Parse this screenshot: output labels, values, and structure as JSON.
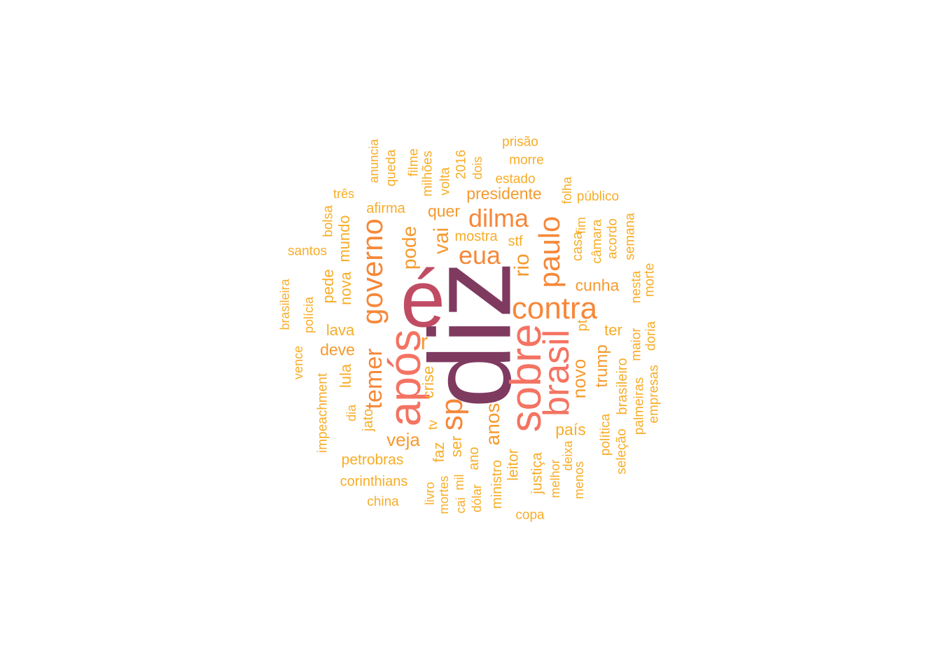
{
  "palette": {
    "t1": "#7f3a60",
    "t2": "#c04c63",
    "t3": "#f47362",
    "t4": "#f5883a",
    "t5": "#f59a2f",
    "t6": "#f7ad28"
  },
  "words": [
    {
      "text": "diz",
      "tier": "t1"
    },
    {
      "text": "é",
      "tier": "t2"
    },
    {
      "text": "após",
      "tier": "t3"
    },
    {
      "text": "sobre",
      "tier": "t3"
    },
    {
      "text": "brasil",
      "tier": "t3"
    },
    {
      "text": "contra",
      "tier": "t4"
    },
    {
      "text": "paulo",
      "tier": "t4"
    },
    {
      "text": "governo",
      "tier": "t4"
    },
    {
      "text": "sp",
      "tier": "t4"
    },
    {
      "text": "dilma",
      "tier": "t4"
    },
    {
      "text": "eua",
      "tier": "t4"
    },
    {
      "text": "temer",
      "tier": "t4"
    },
    {
      "text": "rio",
      "tier": "t5"
    },
    {
      "text": "vai",
      "tier": "t5"
    },
    {
      "text": "pode",
      "tier": "t5"
    },
    {
      "text": "r",
      "tier": "t5"
    },
    {
      "text": "anos",
      "tier": "t5"
    },
    {
      "text": "veja",
      "tier": "t5"
    },
    {
      "text": "novo",
      "tier": "t5"
    },
    {
      "text": "trump",
      "tier": "t5"
    },
    {
      "text": "cunha",
      "tier": "t5"
    },
    {
      "text": "presidente",
      "tier": "t5"
    },
    {
      "text": "quer",
      "tier": "t5"
    },
    {
      "text": "deve",
      "tier": "t5"
    },
    {
      "text": "crise",
      "tier": "t6"
    },
    {
      "text": "lula",
      "tier": "t6"
    },
    {
      "text": "lava",
      "tier": "t6"
    },
    {
      "text": "nova",
      "tier": "t6"
    },
    {
      "text": "mundo",
      "tier": "t6"
    },
    {
      "text": "pede",
      "tier": "t6"
    },
    {
      "text": "país",
      "tier": "t6"
    },
    {
      "text": "faz",
      "tier": "t6"
    },
    {
      "text": "ser",
      "tier": "t6"
    },
    {
      "text": "ter",
      "tier": "t6"
    },
    {
      "text": "justiça",
      "tier": "t6"
    },
    {
      "text": "leitor",
      "tier": "t6"
    },
    {
      "text": "ministro",
      "tier": "t6"
    },
    {
      "text": "ano",
      "tier": "t6"
    },
    {
      "text": "petrobras",
      "tier": "t6"
    },
    {
      "text": "corinthians",
      "tier": "t6"
    },
    {
      "text": "china",
      "tier": "t6"
    },
    {
      "text": "copa",
      "tier": "t6"
    },
    {
      "text": "afirma",
      "tier": "t6"
    },
    {
      "text": "mostra",
      "tier": "t6"
    },
    {
      "text": "stf",
      "tier": "t6"
    },
    {
      "text": "casa",
      "tier": "t6"
    },
    {
      "text": "fim",
      "tier": "t6"
    },
    {
      "text": "pt",
      "tier": "t6"
    },
    {
      "text": "brasileiro",
      "tier": "t6"
    },
    {
      "text": "política",
      "tier": "t6"
    },
    {
      "text": "seleção",
      "tier": "t6"
    },
    {
      "text": "palmeiras",
      "tier": "t6"
    },
    {
      "text": "maior",
      "tier": "t6"
    },
    {
      "text": "empresas",
      "tier": "t6"
    },
    {
      "text": "doria",
      "tier": "t6"
    },
    {
      "text": "morte",
      "tier": "t6"
    },
    {
      "text": "nesta",
      "tier": "t6"
    },
    {
      "text": "semana",
      "tier": "t6"
    },
    {
      "text": "acordo",
      "tier": "t6"
    },
    {
      "text": "câmara",
      "tier": "t6"
    },
    {
      "text": "folha",
      "tier": "t6"
    },
    {
      "text": "público",
      "tier": "t6"
    },
    {
      "text": "estado",
      "tier": "t6"
    },
    {
      "text": "morre",
      "tier": "t6"
    },
    {
      "text": "prisão",
      "tier": "t6"
    },
    {
      "text": "dois",
      "tier": "t6"
    },
    {
      "text": "2016",
      "tier": "t6"
    },
    {
      "text": "volta",
      "tier": "t6"
    },
    {
      "text": "milhões",
      "tier": "t6"
    },
    {
      "text": "filme",
      "tier": "t6"
    },
    {
      "text": "queda",
      "tier": "t6"
    },
    {
      "text": "anuncia",
      "tier": "t6"
    },
    {
      "text": "três",
      "tier": "t6"
    },
    {
      "text": "bolsa",
      "tier": "t6"
    },
    {
      "text": "santos",
      "tier": "t6"
    },
    {
      "text": "brasileira",
      "tier": "t6"
    },
    {
      "text": "polícia",
      "tier": "t6"
    },
    {
      "text": "vence",
      "tier": "t6"
    },
    {
      "text": "impeachment",
      "tier": "t6"
    },
    {
      "text": "dia",
      "tier": "t6"
    },
    {
      "text": "jato",
      "tier": "t6"
    },
    {
      "text": "tv",
      "tier": "t6"
    },
    {
      "text": "livro",
      "tier": "t6"
    },
    {
      "text": "mortes",
      "tier": "t6"
    },
    {
      "text": "cai",
      "tier": "t6"
    },
    {
      "text": "mil",
      "tier": "t6"
    },
    {
      "text": "dólar",
      "tier": "t6"
    },
    {
      "text": "melhor",
      "tier": "t6"
    },
    {
      "text": "deixa",
      "tier": "t6"
    },
    {
      "text": "menos",
      "tier": "t6"
    }
  ]
}
